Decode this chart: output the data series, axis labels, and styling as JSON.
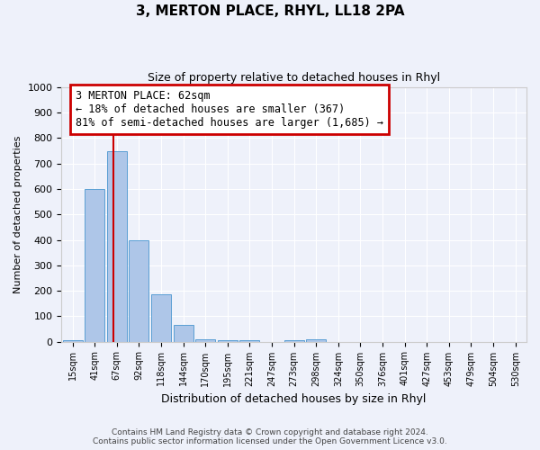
{
  "title": "3, MERTON PLACE, RHYL, LL18 2PA",
  "subtitle": "Size of property relative to detached houses in Rhyl",
  "xlabel": "Distribution of detached houses by size in Rhyl",
  "ylabel": "Number of detached properties",
  "bin_labels": [
    "15sqm",
    "41sqm",
    "67sqm",
    "92sqm",
    "118sqm",
    "144sqm",
    "170sqm",
    "195sqm",
    "221sqm",
    "247sqm",
    "273sqm",
    "298sqm",
    "324sqm",
    "350sqm",
    "376sqm",
    "401sqm",
    "427sqm",
    "453sqm",
    "479sqm",
    "504sqm",
    "530sqm"
  ],
  "bar_heights": [
    5,
    600,
    750,
    400,
    185,
    65,
    10,
    5,
    5,
    0,
    5,
    10,
    0,
    0,
    0,
    0,
    0,
    0,
    0,
    0,
    0
  ],
  "bar_color": "#aec6e8",
  "bar_edge_color": "#5a9fd4",
  "property_line_color": "#cc0000",
  "property_line_x": 1.85,
  "annotation_text": "3 MERTON PLACE: 62sqm\n← 18% of detached houses are smaller (367)\n81% of semi-detached houses are larger (1,685) →",
  "annotation_box_color": "#cc0000",
  "ylim": [
    0,
    1000
  ],
  "yticks": [
    0,
    100,
    200,
    300,
    400,
    500,
    600,
    700,
    800,
    900,
    1000
  ],
  "background_color": "#eef1fa",
  "grid_color": "#ffffff",
  "footer_line1": "Contains HM Land Registry data © Crown copyright and database right 2024.",
  "footer_line2": "Contains public sector information licensed under the Open Government Licence v3.0."
}
